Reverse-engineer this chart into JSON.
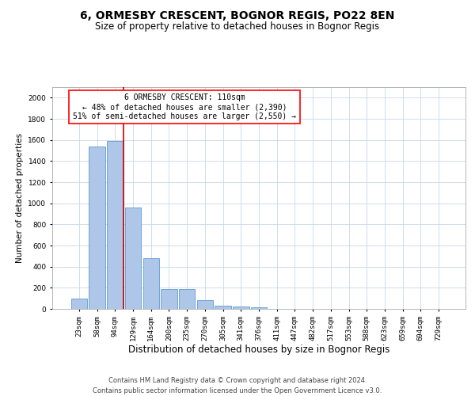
{
  "title": "6, ORMESBY CRESCENT, BOGNOR REGIS, PO22 8EN",
  "subtitle": "Size of property relative to detached houses in Bognor Regis",
  "xlabel": "Distribution of detached houses by size in Bognor Regis",
  "ylabel": "Number of detached properties",
  "categories": [
    "23sqm",
    "58sqm",
    "94sqm",
    "129sqm",
    "164sqm",
    "200sqm",
    "235sqm",
    "270sqm",
    "305sqm",
    "341sqm",
    "376sqm",
    "411sqm",
    "447sqm",
    "482sqm",
    "517sqm",
    "553sqm",
    "588sqm",
    "623sqm",
    "659sqm",
    "694sqm",
    "729sqm"
  ],
  "values": [
    100,
    1540,
    1590,
    960,
    480,
    190,
    190,
    80,
    30,
    20,
    15,
    0,
    0,
    0,
    0,
    0,
    0,
    0,
    0,
    0,
    0
  ],
  "bar_color": "#aec6e8",
  "bar_edge_color": "#5b9bd5",
  "highlight_bar_index": 2,
  "red_line_color": "#cc0000",
  "annotation_box_text": "6 ORMESBY CRESCENT: 110sqm\n← 48% of detached houses are smaller (2,390)\n51% of semi-detached houses are larger (2,550) →",
  "ylim": [
    0,
    2100
  ],
  "yticks": [
    0,
    200,
    400,
    600,
    800,
    1000,
    1200,
    1400,
    1600,
    1800,
    2000
  ],
  "bg_color": "#ffffff",
  "grid_color": "#c8d8e8",
  "footer_line1": "Contains HM Land Registry data © Crown copyright and database right 2024.",
  "footer_line2": "Contains public sector information licensed under the Open Government Licence v3.0.",
  "title_fontsize": 10,
  "subtitle_fontsize": 8.5,
  "xlabel_fontsize": 8.5,
  "ylabel_fontsize": 7.5,
  "tick_fontsize": 6.5,
  "annotation_fontsize": 7,
  "footer_fontsize": 6
}
